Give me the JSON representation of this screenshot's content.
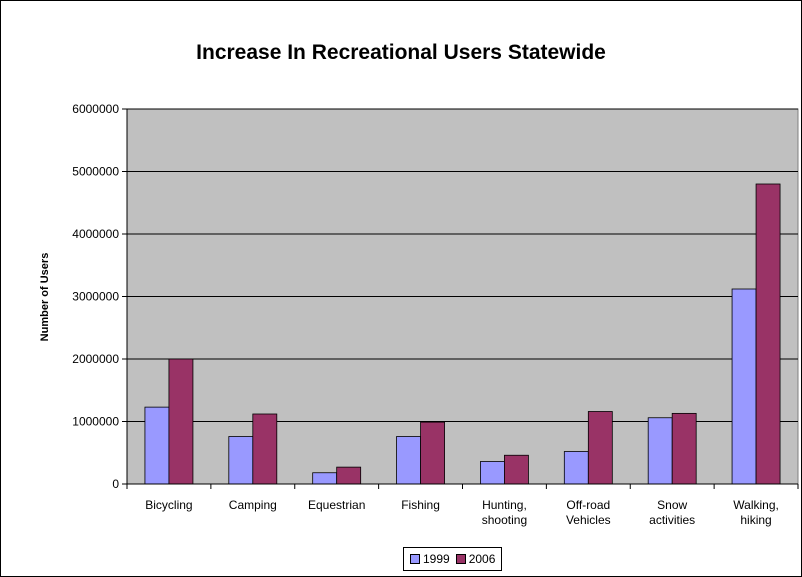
{
  "chart_data": {
    "type": "bar",
    "title": "Increase In Recreational Users Statewide",
    "xlabel": "",
    "ylabel": "Number of Users",
    "ylim": [
      0,
      6000000
    ],
    "yticks": [
      "0",
      "1000000",
      "2000000",
      "3000000",
      "4000000",
      "5000000",
      "6000000"
    ],
    "categories": [
      [
        "Bicycling"
      ],
      [
        "Camping"
      ],
      [
        "Equestrian"
      ],
      [
        "Fishing"
      ],
      [
        "Hunting,",
        "shooting"
      ],
      [
        "Off-road",
        "Vehicles"
      ],
      [
        "Snow",
        "activities"
      ],
      [
        "Walking,",
        "hiking"
      ]
    ],
    "series": [
      {
        "name": "1999",
        "color": "#9999ff",
        "values": [
          1230000,
          760000,
          180000,
          760000,
          360000,
          520000,
          1060000,
          3120000
        ]
      },
      {
        "name": "2006",
        "color": "#993366",
        "values": [
          2000000,
          1120000,
          270000,
          990000,
          460000,
          1160000,
          1130000,
          4800000
        ]
      }
    ],
    "grid": true,
    "legend_position": "bottom",
    "plot_background": "#c0c0c0"
  }
}
